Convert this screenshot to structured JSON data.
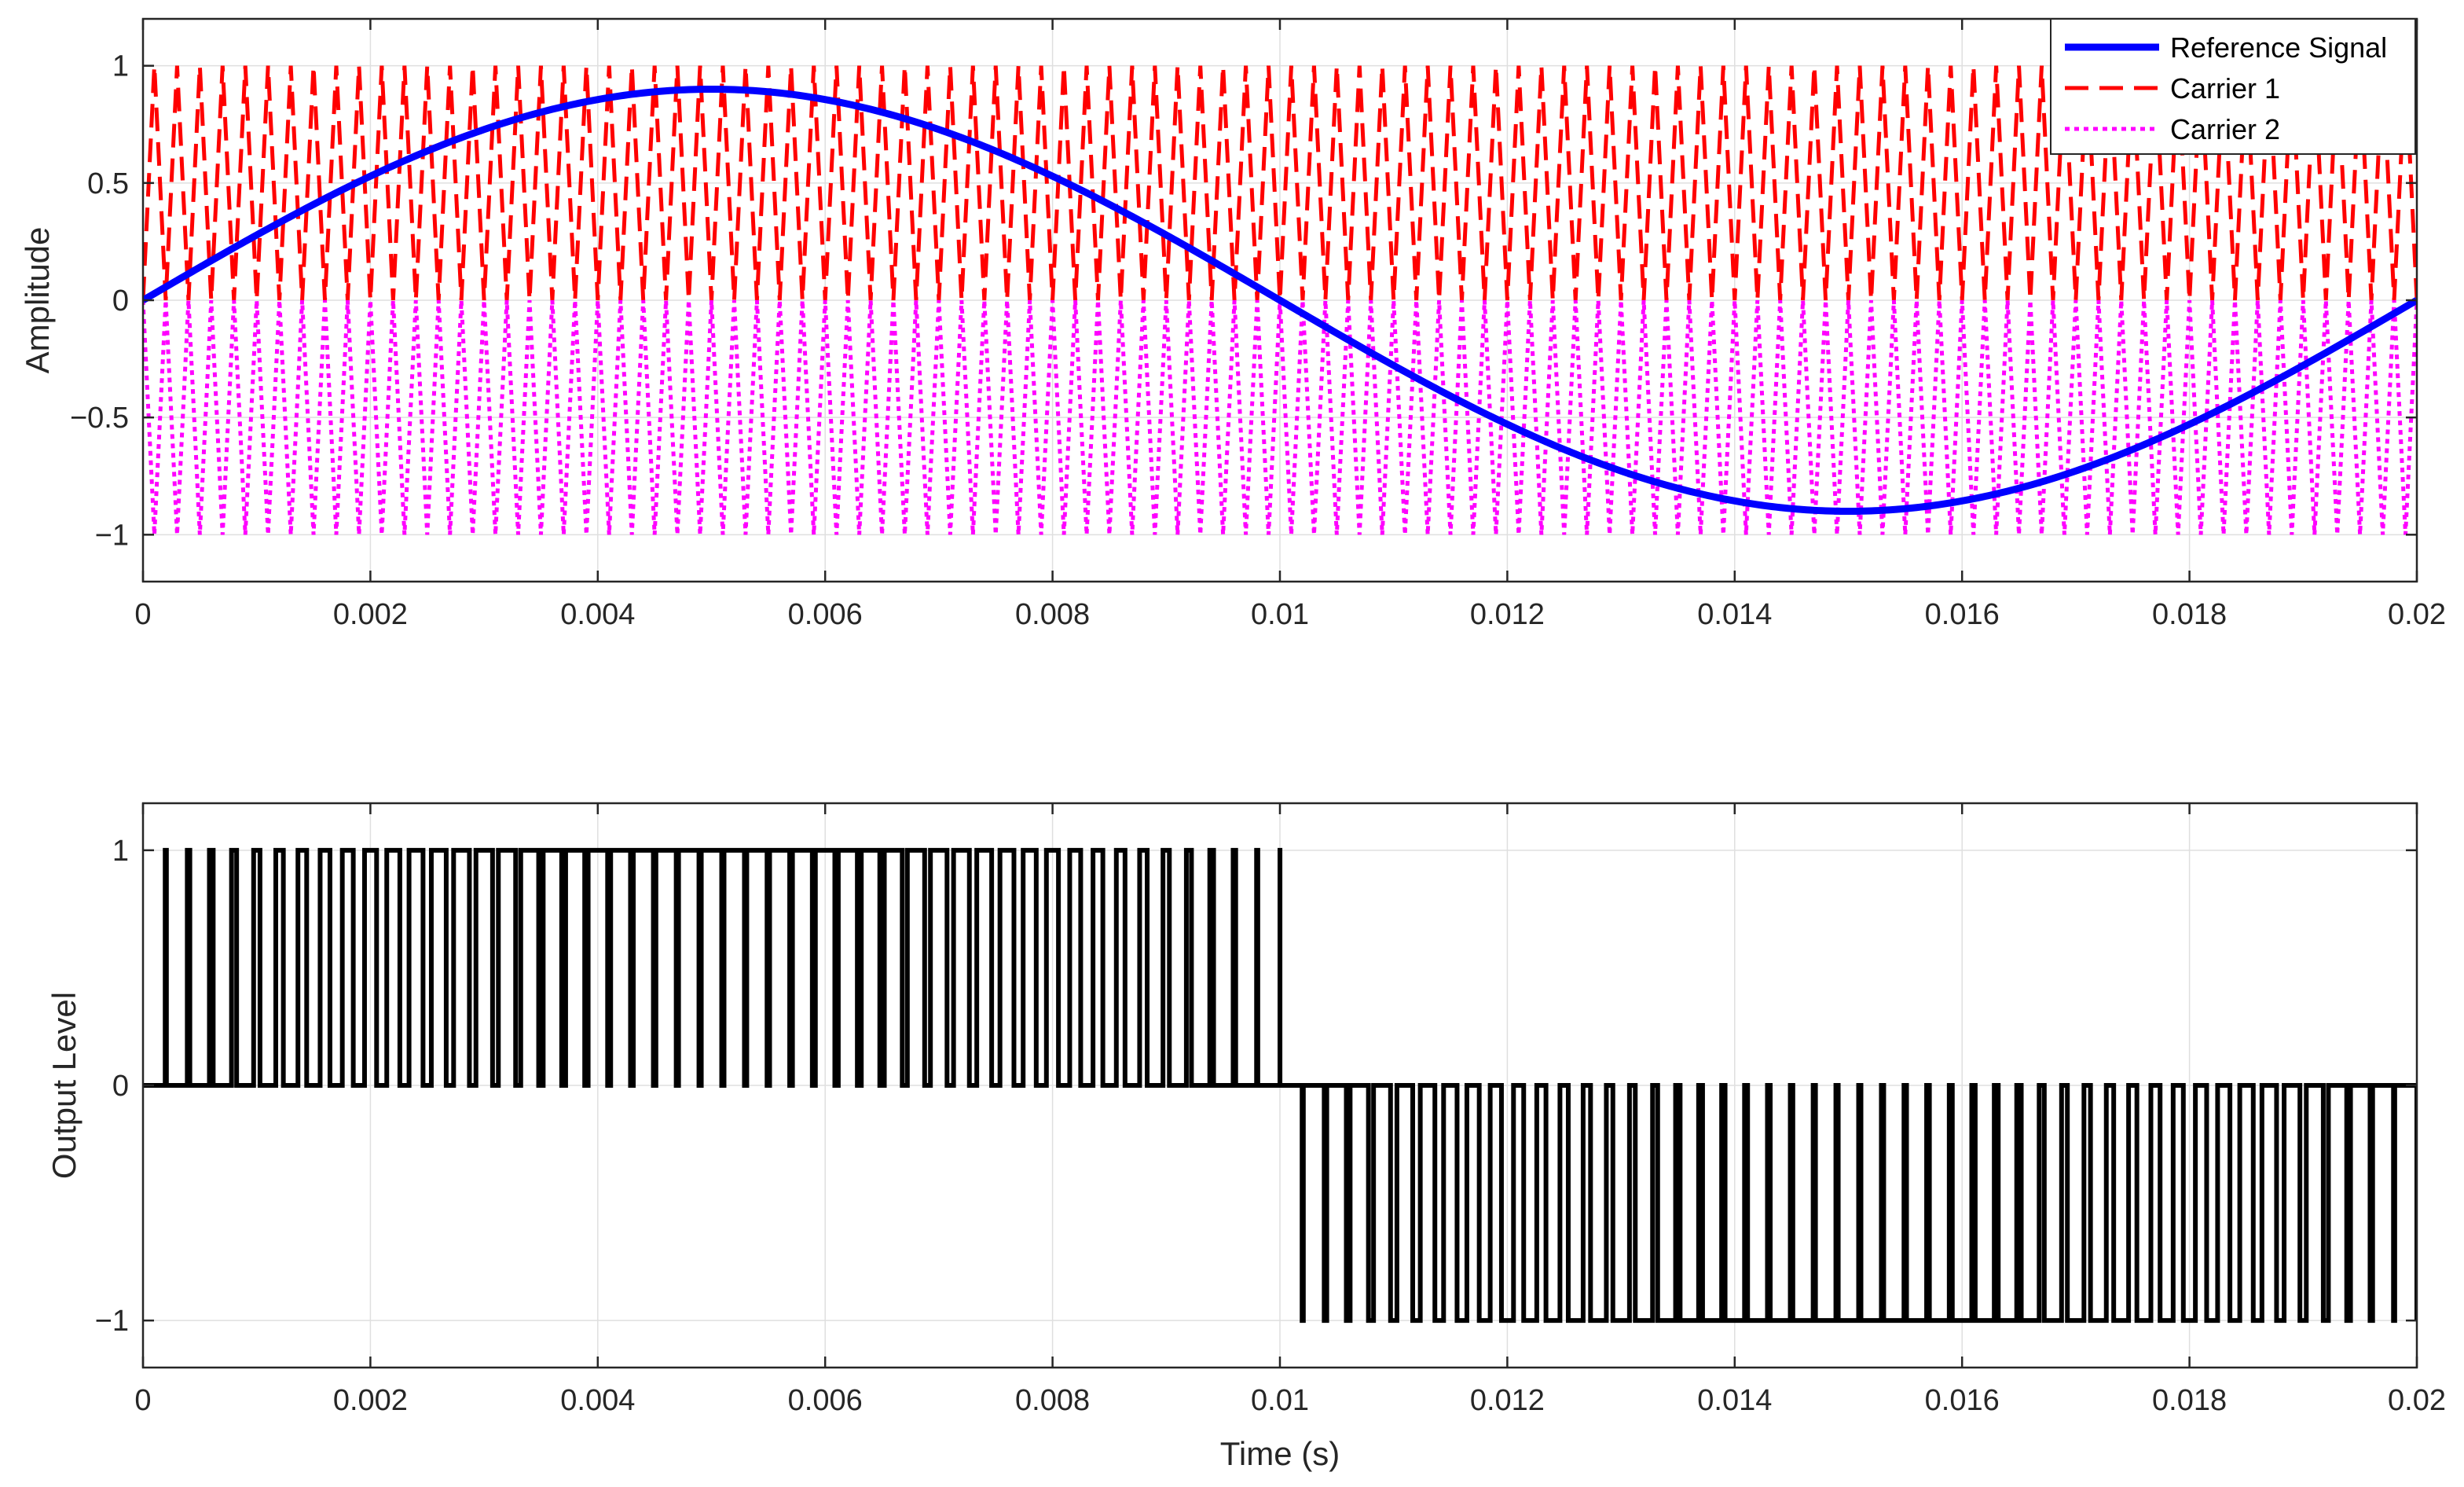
{
  "chart_data": [
    {
      "type": "line",
      "title": "",
      "xlabel": "",
      "ylabel": "Amplitude",
      "xlim": [
        0,
        0.02
      ],
      "ylim": [
        -1.2,
        1.2
      ],
      "x_ticks": [
        0,
        0.002,
        0.004,
        0.006,
        0.008,
        0.01,
        0.012,
        0.014,
        0.016,
        0.018,
        0.02
      ],
      "x_tick_labels": [
        "0",
        "0.002",
        "0.004",
        "0.006",
        "0.008",
        "0.01",
        "0.012",
        "0.014",
        "0.016",
        "0.018",
        "0.02"
      ],
      "y_ticks": [
        -1,
        -0.5,
        0,
        0.5,
        1
      ],
      "y_tick_labels": [
        "−1",
        "−0.5",
        "0",
        "0.5",
        "1"
      ],
      "grid": true,
      "legend_position": "top-right",
      "series": [
        {
          "name": "Reference Signal",
          "style": "solid",
          "color": "#0000ff",
          "function": "0.9*sin(2*pi*50*t)",
          "amplitude": 0.9,
          "frequency_hz": 50
        },
        {
          "name": "Carrier 1",
          "style": "dashed",
          "color": "#ff0000",
          "waveform": "triangle",
          "range": [
            0,
            1
          ],
          "frequency_hz": 5000
        },
        {
          "name": "Carrier 2",
          "style": "dotted",
          "color": "#ff00ff",
          "waveform": "triangle",
          "range": [
            -1,
            0
          ],
          "frequency_hz": 5000
        }
      ]
    },
    {
      "type": "line",
      "title": "",
      "xlabel": "Time (s)",
      "ylabel": "Output Level",
      "xlim": [
        0,
        0.02
      ],
      "ylim": [
        -1.2,
        1.2
      ],
      "x_ticks": [
        0,
        0.002,
        0.004,
        0.006,
        0.008,
        0.01,
        0.012,
        0.014,
        0.016,
        0.018,
        0.02
      ],
      "x_tick_labels": [
        "0",
        "0.002",
        "0.004",
        "0.006",
        "0.008",
        "0.01",
        "0.012",
        "0.014",
        "0.016",
        "0.018",
        "0.02"
      ],
      "y_ticks": [
        -1,
        0,
        1
      ],
      "y_tick_labels": [
        "−1",
        "0",
        "1"
      ],
      "grid": true,
      "series": [
        {
          "style": "solid",
          "color": "#000000",
          "waveform": "three-level PWM",
          "levels": [
            -1,
            0,
            1
          ],
          "derived_from": "Reference Signal compared with Carrier 1 and Carrier 2"
        }
      ]
    }
  ]
}
